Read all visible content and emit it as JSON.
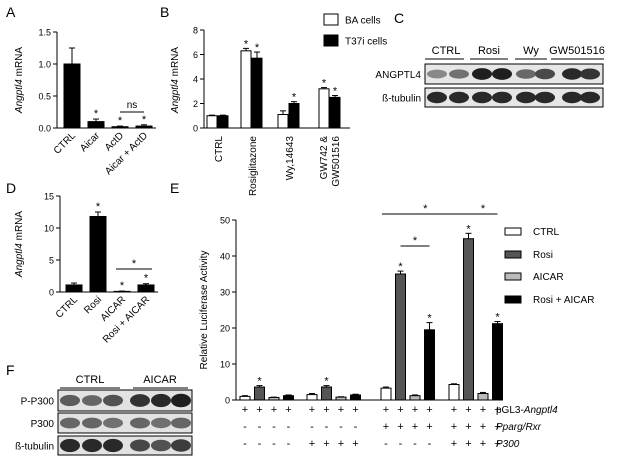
{
  "panel_letters": [
    "A",
    "B",
    "C",
    "D",
    "E",
    "F"
  ],
  "chart_data": [
    {
      "panel": "A",
      "type": "bar",
      "ylabel_italic": "Angptl4",
      "ylabel_rest": " mRNA",
      "ylim": [
        0,
        1.5
      ],
      "yticks": [
        "0.0",
        "0.5",
        "1.0",
        "1.5"
      ],
      "categories": [
        "CTRL",
        "Aicar",
        "ActD",
        "Aicar + ActD"
      ],
      "values": [
        1.0,
        0.1,
        0.02,
        0.03
      ],
      "errors": [
        0.25,
        0.04,
        0.01,
        0.02
      ],
      "significance": [
        "",
        "*",
        "*",
        "*"
      ],
      "bracket": {
        "from": 2,
        "to": 3,
        "label": "ns"
      }
    },
    {
      "panel": "B",
      "type": "bar",
      "ylabel_italic": "Angptl4",
      "ylabel_rest": " mRNA",
      "ylim": [
        0,
        8
      ],
      "yticks": [
        "0",
        "2",
        "4",
        "6",
        "8"
      ],
      "categories": [
        "CTRL",
        "Rosiglitazone",
        "Wy,14643",
        "GW742 & GW501516"
      ],
      "series": [
        {
          "name": "BA cells",
          "values": [
            1.0,
            6.3,
            1.1,
            3.2
          ],
          "errors": [
            0.05,
            0.2,
            0.3,
            0.1
          ]
        },
        {
          "name": "T37i cells",
          "values": [
            1.0,
            5.7,
            2.0,
            2.5
          ],
          "errors": [
            0.05,
            0.5,
            0.15,
            0.15
          ]
        }
      ],
      "significance": [
        [
          "",
          ""
        ],
        [
          "*",
          "*"
        ],
        [
          "",
          "*"
        ],
        [
          "*",
          "*"
        ]
      ]
    },
    {
      "panel": "D",
      "type": "bar",
      "ylabel_italic": "Angptl4",
      "ylabel_rest": " mRNA",
      "ylim": [
        0,
        15
      ],
      "yticks": [
        "0",
        "5",
        "10",
        "15"
      ],
      "categories": [
        "CTRL",
        "Rosi",
        "AICAR",
        "Rosi + AICAR"
      ],
      "values": [
        1.1,
        11.8,
        0.1,
        1.1
      ],
      "errors": [
        0.3,
        0.7,
        0.05,
        0.2
      ],
      "significance": [
        "",
        "*",
        "*",
        "*"
      ],
      "bracket": {
        "from": 2,
        "to": 3,
        "label": "*"
      }
    },
    {
      "panel": "E",
      "type": "bar",
      "ylabel": "Relative Luciferase Activity",
      "ylim": [
        0,
        50
      ],
      "yticks": [
        "0",
        "10",
        "20",
        "30",
        "40",
        "50"
      ],
      "series_names": [
        "CTRL",
        "Rosi",
        "AICAR",
        "Rosi + AICAR"
      ],
      "series_colors": [
        "#ffffff",
        "#555555",
        "#bbbbbb",
        "#000000"
      ],
      "groups": [
        {
          "values": [
            1.0,
            3.6,
            0.7,
            1.2
          ],
          "errors": [
            0.2,
            0.4,
            0.1,
            0.2
          ],
          "sig": [
            "",
            "*",
            "",
            ""
          ]
        },
        {
          "values": [
            1.5,
            3.6,
            0.8,
            1.4
          ],
          "errors": [
            0.3,
            0.4,
            0.1,
            0.2
          ],
          "sig": [
            "",
            "*",
            "",
            ""
          ]
        },
        {
          "values": [
            3.3,
            35.0,
            1.2,
            19.5
          ],
          "errors": [
            0.3,
            0.8,
            0.2,
            2.0
          ],
          "sig": [
            "",
            "*",
            "",
            "*"
          ]
        },
        {
          "values": [
            4.3,
            44.8,
            1.8,
            21.2
          ],
          "errors": [
            0.2,
            1.5,
            0.3,
            0.6
          ],
          "sig": [
            "",
            "*",
            "",
            "*"
          ]
        }
      ],
      "brackets": [
        {
          "label": "*",
          "from": [
            2,
            1
          ],
          "to": [
            2,
            3
          ]
        },
        {
          "label": "*",
          "from": [
            2,
            0
          ],
          "to": [
            3,
            1
          ]
        },
        {
          "label": "*",
          "from": [
            3,
            1
          ],
          "to": [
            3,
            3
          ]
        }
      ],
      "conditions": [
        {
          "label_italic": "pGL3-Angptl4",
          "label_prefix": "pGL3-",
          "label_main": "Angptl4",
          "signs": [
            "+",
            "+",
            "+",
            "+",
            "+",
            "+",
            "+",
            "+",
            "+",
            "+",
            "+",
            "+",
            "+",
            "+",
            "+",
            "+"
          ]
        },
        {
          "label_main": "Pparg/Rxr",
          "signs": [
            "-",
            "-",
            "-",
            "-",
            "-",
            "-",
            "-",
            "-",
            "+",
            "+",
            "+",
            "+",
            "+",
            "+",
            "+",
            "+"
          ]
        },
        {
          "label_main": "P300",
          "signs": [
            "-",
            "-",
            "-",
            "-",
            "+",
            "+",
            "+",
            "+",
            "-",
            "-",
            "-",
            "-",
            "+",
            "+",
            "+",
            "+"
          ]
        }
      ]
    }
  ],
  "blot_c": {
    "groups": [
      "CTRL",
      "Rosi",
      "Wy",
      "GW501516"
    ],
    "rows": [
      {
        "label": "ANGPTL4",
        "intensity": [
          0.45,
          0.55,
          0.95,
          0.95,
          0.6,
          0.75,
          0.9,
          0.85
        ]
      },
      {
        "label": "ß-tubulin",
        "intensity": [
          0.9,
          0.9,
          0.9,
          0.9,
          0.9,
          0.9,
          0.9,
          0.9
        ]
      }
    ]
  },
  "blot_f": {
    "groups": [
      "CTRL",
      "AICAR"
    ],
    "rows": [
      {
        "label": "P-P300",
        "intensity": [
          0.65,
          0.6,
          0.7,
          0.85,
          0.9,
          0.95
        ]
      },
      {
        "label": "P300",
        "intensity": [
          0.6,
          0.6,
          0.55,
          0.6,
          0.55,
          0.6
        ]
      },
      {
        "label": "ß-tubulin",
        "intensity": [
          0.9,
          0.9,
          0.9,
          0.75,
          0.7,
          0.8
        ]
      }
    ]
  }
}
